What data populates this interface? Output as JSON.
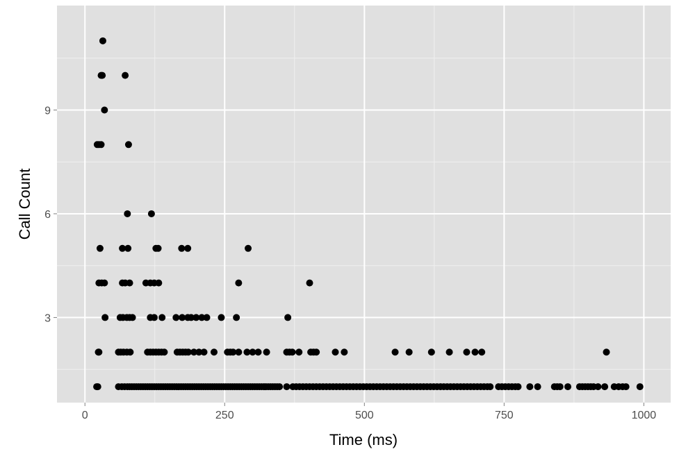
{
  "chart_data": {
    "type": "scatter",
    "title": "",
    "xlabel": "Time (ms)",
    "ylabel": "Call Count",
    "xlim": [
      -50,
      1048
    ],
    "ylim": [
      0.54,
      12.02
    ],
    "x_ticks": [
      0,
      250,
      500,
      750,
      1000
    ],
    "x_tick_labels": [
      "0",
      "250",
      "500",
      "750",
      "1000"
    ],
    "y_ticks": [
      3,
      6,
      9
    ],
    "y_tick_labels": [
      "3",
      "6",
      "9"
    ],
    "x_minor": [
      125,
      375,
      625,
      875
    ],
    "y_minor": [
      1.5,
      4.5,
      7.5,
      10.5
    ],
    "grid": true,
    "colors": {
      "panel": "#e0e0e0",
      "grid": "#ffffff",
      "point": "#000000"
    },
    "series": [
      {
        "y": 11,
        "x": [
          32
        ]
      },
      {
        "y": 10,
        "x": [
          29,
          31,
          72
        ]
      },
      {
        "y": 9,
        "x": [
          35
        ]
      },
      {
        "y": 8,
        "x": [
          22,
          25,
          29,
          78
        ]
      },
      {
        "y": 6,
        "x": [
          76,
          119
        ]
      },
      {
        "y": 5,
        "x": [
          27,
          67,
          77,
          127,
          131,
          173,
          184,
          292
        ]
      },
      {
        "y": 4,
        "x": [
          25,
          30,
          35,
          67,
          72,
          80,
          109,
          117,
          124,
          132,
          275,
          402
        ]
      },
      {
        "y": 3,
        "x": [
          36,
          63,
          68,
          75,
          80,
          85,
          117,
          124,
          138,
          163,
          174,
          184,
          190,
          199,
          209,
          218,
          244,
          271,
          363
        ]
      },
      {
        "y": 2,
        "x": [
          24,
          25,
          60,
          64,
          69,
          75,
          81,
          112,
          117,
          122,
          127,
          132,
          137,
          142,
          165,
          170,
          175,
          180,
          185,
          195,
          204,
          213,
          231,
          255,
          260,
          265,
          275,
          290,
          300,
          310,
          325,
          361,
          366,
          371,
          383,
          404,
          409,
          414,
          448,
          464,
          555,
          580,
          620,
          652,
          683,
          698,
          710,
          933
        ]
      },
      {
        "y": 1,
        "x": [
          21,
          23,
          60,
          66,
          71,
          76,
          80,
          84,
          88,
          92,
          96,
          100,
          104,
          108,
          112,
          116,
          120,
          124,
          128,
          132,
          136,
          140,
          144,
          148,
          152,
          156,
          160,
          164,
          168,
          172,
          176,
          180,
          184,
          188,
          192,
          196,
          200,
          204,
          208,
          212,
          216,
          220,
          224,
          228,
          232,
          236,
          240,
          244,
          248,
          252,
          256,
          260,
          264,
          268,
          272,
          276,
          280,
          284,
          288,
          292,
          296,
          300,
          304,
          308,
          312,
          316,
          320,
          324,
          328,
          332,
          336,
          340,
          344,
          348,
          361,
          372,
          378,
          384,
          390,
          396,
          402,
          408,
          414,
          420,
          426,
          432,
          438,
          444,
          450,
          456,
          462,
          468,
          474,
          480,
          486,
          492,
          498,
          504,
          510,
          516,
          522,
          528,
          534,
          540,
          546,
          552,
          558,
          564,
          570,
          576,
          582,
          588,
          594,
          600,
          606,
          612,
          618,
          624,
          630,
          636,
          642,
          648,
          654,
          660,
          666,
          672,
          678,
          684,
          690,
          696,
          702,
          708,
          714,
          720,
          725,
          740,
          746,
          752,
          758,
          764,
          770,
          775,
          796,
          810,
          840,
          845,
          850,
          864,
          885,
          890,
          895,
          900,
          905,
          910,
          918,
          930,
          947,
          955,
          962,
          968,
          993
        ]
      }
    ]
  }
}
